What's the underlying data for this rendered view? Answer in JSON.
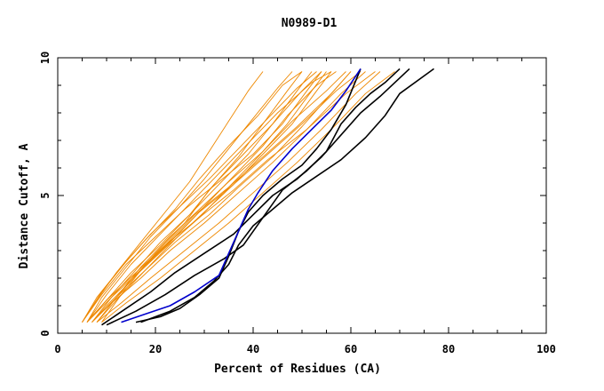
{
  "chart_data": {
    "type": "line",
    "title": "N0989-D1",
    "xlabel": "Percent of Residues (CA)",
    "ylabel": "Distance Cutoff, A",
    "xlim": [
      0,
      100
    ],
    "ylim": [
      0,
      10
    ],
    "xticks": [
      0,
      20,
      40,
      60,
      80,
      100
    ],
    "yticks": [
      0,
      5,
      10
    ],
    "colors": {
      "orange": "#ee8800",
      "black": "#000000",
      "blue": "#0000cc"
    },
    "series": [
      {
        "name": "orange-01",
        "color": "orange",
        "x": [
          5,
          8,
          12,
          17,
          22,
          27,
          31,
          35,
          39,
          42
        ],
        "y": [
          0.4,
          1.2,
          2.2,
          3.3,
          4.4,
          5.5,
          6.6,
          7.7,
          8.8,
          9.5
        ]
      },
      {
        "name": "orange-02",
        "color": "orange",
        "x": [
          6,
          9,
          14,
          19,
          25,
          30,
          35,
          40,
          45,
          48
        ],
        "y": [
          0.4,
          1.3,
          2.4,
          3.5,
          4.6,
          5.6,
          6.7,
          7.8,
          8.9,
          9.5
        ]
      },
      {
        "name": "orange-03",
        "color": "orange",
        "x": [
          6,
          10,
          15,
          21,
          27,
          33,
          39,
          44,
          49,
          52
        ],
        "y": [
          0.4,
          1.2,
          2.2,
          3.2,
          4.3,
          5.4,
          6.5,
          7.6,
          8.8,
          9.5
        ]
      },
      {
        "name": "orange-04",
        "color": "orange",
        "x": [
          7,
          11,
          16,
          22,
          29,
          35,
          41,
          47,
          52,
          55
        ],
        "y": [
          0.4,
          1.1,
          2.1,
          3.1,
          4.2,
          5.3,
          6.4,
          7.6,
          8.8,
          9.5
        ]
      },
      {
        "name": "orange-05",
        "color": "orange",
        "x": [
          5,
          9,
          14,
          20,
          26,
          33,
          40,
          46,
          51,
          54
        ],
        "y": [
          0.4,
          1.4,
          2.5,
          3.5,
          4.5,
          5.5,
          6.5,
          7.6,
          8.8,
          9.5
        ]
      },
      {
        "name": "orange-06",
        "color": "orange",
        "x": [
          7,
          10,
          15,
          20,
          26,
          31,
          37,
          42,
          47,
          50
        ],
        "y": [
          0.4,
          1.0,
          1.9,
          2.9,
          4.0,
          5.2,
          6.4,
          7.6,
          8.8,
          9.5
        ]
      },
      {
        "name": "orange-07",
        "color": "orange",
        "x": [
          8,
          12,
          18,
          24,
          30,
          36,
          42,
          48,
          53,
          56
        ],
        "y": [
          0.4,
          1.2,
          2.3,
          3.4,
          4.4,
          5.4,
          6.5,
          7.6,
          8.8,
          9.5
        ]
      },
      {
        "name": "orange-08",
        "color": "orange",
        "x": [
          5,
          8,
          13,
          18,
          24,
          29,
          35,
          41,
          46,
          50
        ],
        "y": [
          0.4,
          1.3,
          2.4,
          3.4,
          4.5,
          5.6,
          6.8,
          7.9,
          9.0,
          9.5
        ]
      },
      {
        "name": "orange-09",
        "color": "orange",
        "x": [
          6,
          10,
          16,
          22,
          28,
          35,
          42,
          49,
          56,
          60
        ],
        "y": [
          0.4,
          1.2,
          2.2,
          3.2,
          4.3,
          5.3,
          6.4,
          7.5,
          8.7,
          9.5
        ]
      },
      {
        "name": "orange-10",
        "color": "orange",
        "x": [
          7,
          11,
          17,
          23,
          30,
          37,
          44,
          51,
          58,
          63
        ],
        "y": [
          0.4,
          1.1,
          2.0,
          3.0,
          4.0,
          5.1,
          6.2,
          7.4,
          8.7,
          9.5
        ]
      },
      {
        "name": "orange-11",
        "color": "orange",
        "x": [
          8,
          13,
          19,
          26,
          33,
          40,
          47,
          54,
          61,
          66
        ],
        "y": [
          0.4,
          1.1,
          2.0,
          3.0,
          4.0,
          5.1,
          6.2,
          7.4,
          8.7,
          9.5
        ]
      },
      {
        "name": "orange-12",
        "color": "orange",
        "x": [
          9,
          14,
          21,
          28,
          35,
          42,
          49,
          56,
          63,
          69
        ],
        "y": [
          0.4,
          1.1,
          2.0,
          3.0,
          4.0,
          5.1,
          6.2,
          7.4,
          8.7,
          9.5
        ]
      },
      {
        "name": "orange-13",
        "color": "orange",
        "x": [
          6,
          10,
          15,
          21,
          27,
          33,
          39,
          45,
          52,
          56
        ],
        "y": [
          0.4,
          1.4,
          2.5,
          3.6,
          4.7,
          5.8,
          6.9,
          8.0,
          9.1,
          9.5
        ]
      },
      {
        "name": "orange-14",
        "color": "orange",
        "x": [
          7,
          12,
          18,
          24,
          31,
          37,
          44,
          50,
          56,
          60
        ],
        "y": [
          0.4,
          1.3,
          2.3,
          3.3,
          4.3,
          5.3,
          6.4,
          7.5,
          8.7,
          9.5
        ]
      },
      {
        "name": "orange-15",
        "color": "orange",
        "x": [
          5,
          9,
          14,
          19,
          25,
          31,
          37,
          43,
          49,
          53
        ],
        "y": [
          0.4,
          1.5,
          2.6,
          3.6,
          4.6,
          5.6,
          6.7,
          7.8,
          8.9,
          9.5
        ]
      },
      {
        "name": "orange-16",
        "color": "orange",
        "x": [
          6,
          11,
          17,
          23,
          29,
          36,
          43,
          50,
          57,
          62
        ],
        "y": [
          0.4,
          1.3,
          2.3,
          3.3,
          4.4,
          5.4,
          6.5,
          7.6,
          8.8,
          9.5
        ]
      },
      {
        "name": "orange-17",
        "color": "orange",
        "x": [
          8,
          12,
          17,
          23,
          29,
          35,
          42,
          48,
          55,
          59
        ],
        "y": [
          0.4,
          1.3,
          2.4,
          3.5,
          4.5,
          5.5,
          6.6,
          7.7,
          8.8,
          9.5
        ]
      },
      {
        "name": "orange-18",
        "color": "orange",
        "x": [
          7,
          11,
          16,
          21,
          27,
          32,
          38,
          44,
          50,
          54
        ],
        "y": [
          0.4,
          1.3,
          2.3,
          3.3,
          4.3,
          5.4,
          6.5,
          7.6,
          8.8,
          9.5
        ]
      },
      {
        "name": "orange-19",
        "color": "orange",
        "x": [
          6,
          10,
          16,
          22,
          29,
          36,
          43,
          51,
          59,
          65
        ],
        "y": [
          0.4,
          1.2,
          2.2,
          3.2,
          4.2,
          5.2,
          6.3,
          7.4,
          8.7,
          9.5
        ]
      },
      {
        "name": "orange-20",
        "color": "orange",
        "x": [
          9,
          13,
          18,
          24,
          30,
          36,
          42,
          47,
          53,
          57
        ],
        "y": [
          0.4,
          1.4,
          2.5,
          3.5,
          4.6,
          5.7,
          6.8,
          7.9,
          9.0,
          9.5
        ]
      },
      {
        "name": "black-1",
        "color": "black",
        "x": [
          9,
          14,
          19,
          24,
          30,
          36,
          40,
          44,
          49,
          54,
          58,
          62,
          66,
          69,
          72
        ],
        "y": [
          0.3,
          0.9,
          1.5,
          2.2,
          2.9,
          3.6,
          4.3,
          5.0,
          5.6,
          6.4,
          7.2,
          8.0,
          8.6,
          9.1,
          9.6
        ]
      },
      {
        "name": "black-2",
        "color": "black",
        "x": [
          10,
          16,
          22,
          28,
          34,
          38,
          42,
          46,
          51,
          55,
          58,
          61,
          64,
          67,
          70
        ],
        "y": [
          0.3,
          0.8,
          1.4,
          2.1,
          2.7,
          3.2,
          4.2,
          5.2,
          5.9,
          6.6,
          7.6,
          8.2,
          8.7,
          9.1,
          9.6
        ]
      },
      {
        "name": "black-3",
        "color": "black",
        "x": [
          16,
          21,
          25,
          29,
          33,
          35,
          37,
          39,
          42,
          46,
          50,
          53,
          56,
          59,
          62
        ],
        "y": [
          0.4,
          0.6,
          0.9,
          1.4,
          2.0,
          2.8,
          3.7,
          4.4,
          5.0,
          5.6,
          6.1,
          6.7,
          7.4,
          8.3,
          9.6
        ]
      },
      {
        "name": "black-4",
        "color": "black",
        "x": [
          17,
          23,
          28,
          32,
          35,
          37,
          40,
          44,
          48,
          53,
          58,
          63,
          67,
          70,
          77
        ],
        "y": [
          0.4,
          0.8,
          1.3,
          1.9,
          2.5,
          3.2,
          3.9,
          4.5,
          5.1,
          5.7,
          6.3,
          7.1,
          7.9,
          8.7,
          9.6
        ]
      },
      {
        "name": "blue-1",
        "color": "blue",
        "x": [
          13,
          18,
          23,
          28,
          33,
          35,
          37,
          39,
          41,
          44,
          48,
          52,
          56,
          59,
          62
        ],
        "y": [
          0.4,
          0.7,
          1.0,
          1.5,
          2.1,
          2.9,
          3.7,
          4.5,
          5.1,
          5.9,
          6.7,
          7.4,
          8.1,
          8.8,
          9.6
        ]
      }
    ]
  }
}
